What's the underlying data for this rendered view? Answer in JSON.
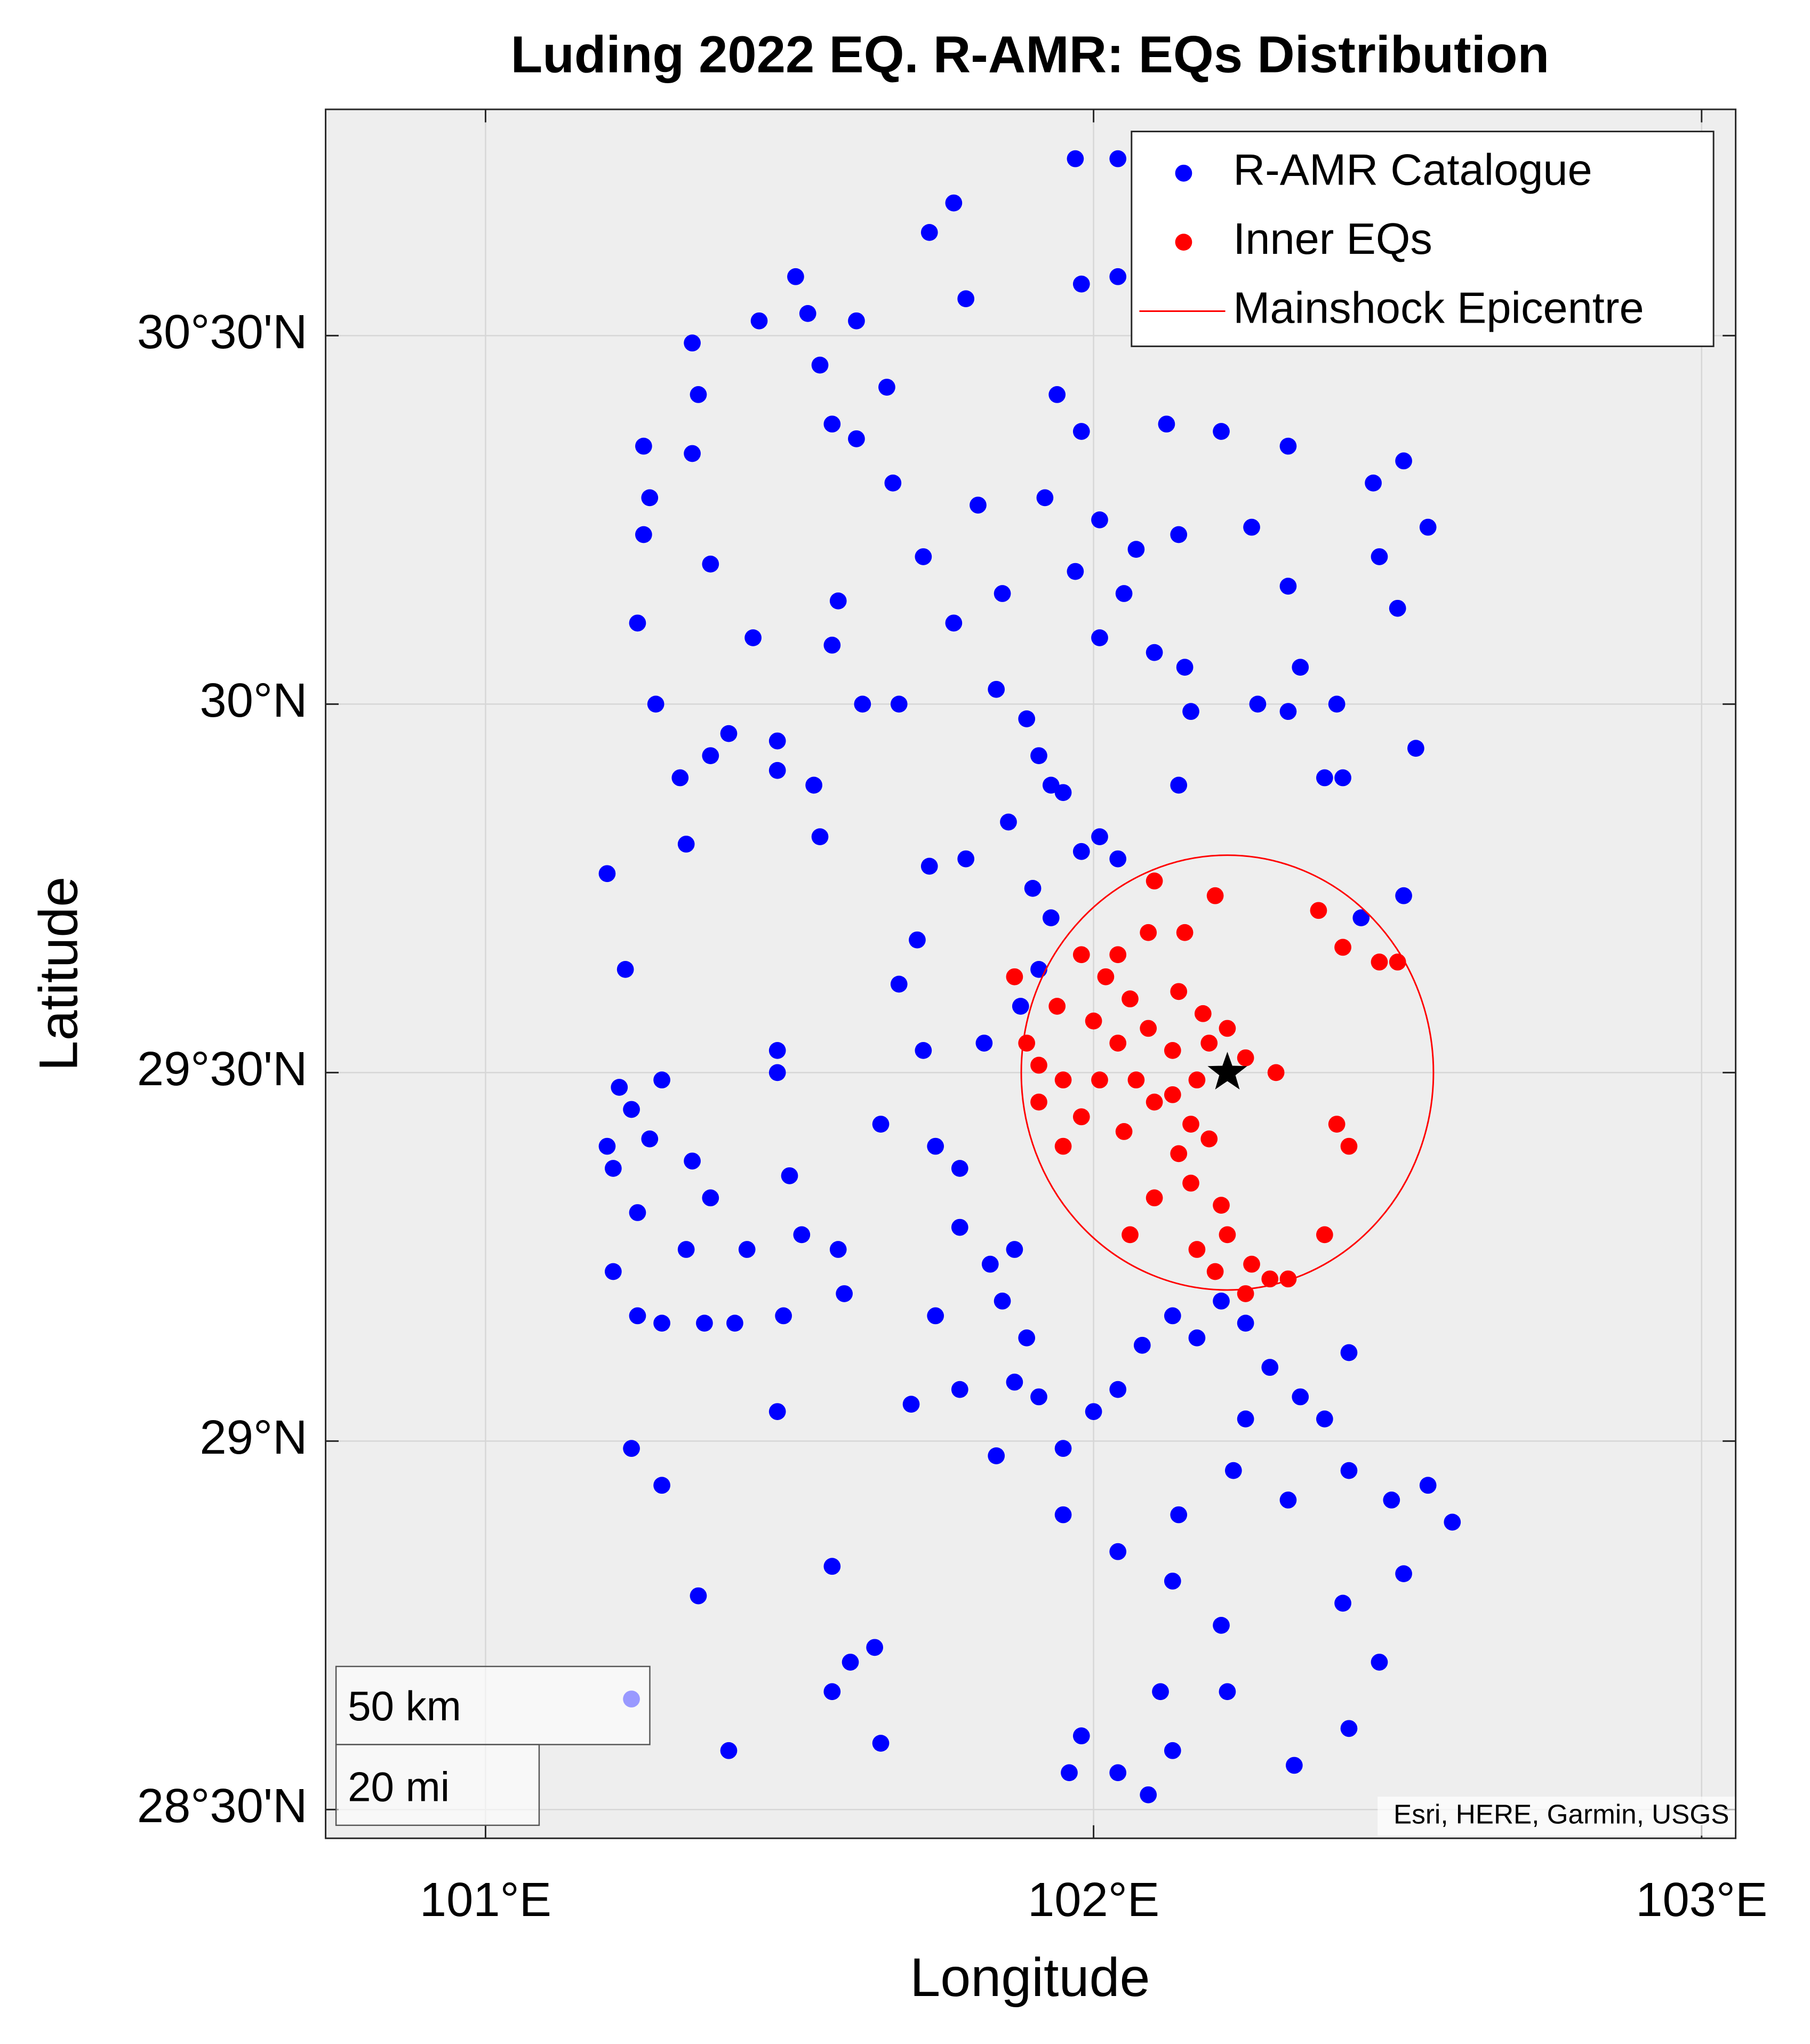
{
  "chart_data": {
    "type": "scatter",
    "title": "Luding 2022 EQ. R-AMR: EQs Distribution",
    "x_label": "Longitude",
    "y_label": "Latitude",
    "xlim": [
      100.737,
      103.056
    ],
    "ylim": [
      28.461,
      30.807
    ],
    "xticks": [
      {
        "value": 101,
        "label": "101°E"
      },
      {
        "value": 102,
        "label": "102°E"
      },
      {
        "value": 103,
        "label": "103°E"
      }
    ],
    "yticks": [
      {
        "value": 28.5,
        "label": "28°30'N"
      },
      {
        "value": 29,
        "label": "29°N"
      },
      {
        "value": 29.5,
        "label": "29°30'N"
      },
      {
        "value": 30,
        "label": "30°N"
      },
      {
        "value": 30.5,
        "label": "30°30'N"
      }
    ],
    "grid": true,
    "legend_loc": "upper right",
    "series": [
      {
        "name": "R-AMR Catalogue",
        "color": "#0000ff",
        "x": [
          101.97,
          102.04,
          101.77,
          101.73,
          101.51,
          101.53,
          101.45,
          101.61,
          101.79,
          101.98,
          102.04,
          101.34,
          101.35,
          101.55,
          101.57,
          101.61,
          101.66,
          101.94,
          101.98,
          102.12,
          102.21,
          102.32,
          102.51,
          102.46,
          101.26,
          101.27,
          101.34,
          101.37,
          101.26,
          101.67,
          101.81,
          101.92,
          102.01,
          102.07,
          102.14,
          101.97,
          102.05,
          102.01,
          102.1,
          102.26,
          102.32,
          102.47,
          102.5,
          102.55,
          101.25,
          101.28,
          101.44,
          101.58,
          101.57,
          101.62,
          101.68,
          101.72,
          101.77,
          101.85,
          101.84,
          101.89,
          101.91,
          101.95,
          102.01,
          102.04,
          101.98,
          101.86,
          101.93,
          102.15,
          102.16,
          102.14,
          102.27,
          102.32,
          102.34,
          102.4,
          102.38,
          102.41,
          102.53,
          101.32,
          101.37,
          101.4,
          101.48,
          101.48,
          101.54,
          101.33,
          101.55,
          101.2,
          101.23,
          101.73,
          101.79,
          101.9,
          101.93,
          101.91,
          101.88,
          101.82,
          101.71,
          101.68,
          101.72,
          101.48,
          101.48,
          102.44,
          102.51,
          101.22,
          101.29,
          101.24,
          101.2,
          101.27,
          101.21,
          101.25,
          101.21,
          101.25,
          101.29,
          101.34,
          101.37,
          101.33,
          101.36,
          101.41,
          101.43,
          101.5,
          101.49,
          101.52,
          101.58,
          101.59,
          101.65,
          101.74,
          101.78,
          101.78,
          101.83,
          101.87,
          101.85,
          101.89,
          101.87,
          101.91,
          101.74,
          101.7,
          101.78,
          101.84,
          101.95,
          102.0,
          102.04,
          102.08,
          102.13,
          102.17,
          102.21,
          102.25,
          102.29,
          102.34,
          102.38,
          102.42,
          102.25,
          102.23,
          102.32,
          102.42,
          102.49,
          102.55,
          102.59,
          102.51,
          102.41,
          102.47,
          102.42,
          102.33,
          102.21,
          102.22,
          102.13,
          102.11,
          102.04,
          101.95,
          101.98,
          101.96,
          102.04,
          102.09,
          102.13,
          101.57,
          101.64,
          101.6,
          101.57,
          101.65,
          101.4,
          101.35,
          101.29,
          101.48,
          101.24,
          102.14,
          101.24
        ],
        "y": [
          30.74,
          30.74,
          30.68,
          30.64,
          30.58,
          30.53,
          30.52,
          30.52,
          30.55,
          30.57,
          30.58,
          30.49,
          30.42,
          30.46,
          30.38,
          30.36,
          30.43,
          30.42,
          30.37,
          30.38,
          30.37,
          30.35,
          30.33,
          30.3,
          30.35,
          30.28,
          30.34,
          30.19,
          30.23,
          30.3,
          30.27,
          30.28,
          30.25,
          30.21,
          30.23,
          30.18,
          30.15,
          30.09,
          30.07,
          30.24,
          30.16,
          30.2,
          30.13,
          30.24,
          30.11,
          30.0,
          30.09,
          30.14,
          30.08,
          30.0,
          30.0,
          30.2,
          30.11,
          30.15,
          30.02,
          29.98,
          29.93,
          29.88,
          29.82,
          29.79,
          29.8,
          29.84,
          29.89,
          30.05,
          29.99,
          29.89,
          30.0,
          29.99,
          30.05,
          30.0,
          29.9,
          29.9,
          29.94,
          29.9,
          29.93,
          29.96,
          29.95,
          29.91,
          29.89,
          29.81,
          29.82,
          29.77,
          29.64,
          29.78,
          29.79,
          29.75,
          29.71,
          29.64,
          29.59,
          29.54,
          29.68,
          29.62,
          29.53,
          29.53,
          29.5,
          29.71,
          29.74,
          29.48,
          29.49,
          29.45,
          29.4,
          29.41,
          29.37,
          29.31,
          29.23,
          29.17,
          29.16,
          29.38,
          29.33,
          29.26,
          29.16,
          29.16,
          29.26,
          29.36,
          29.17,
          29.28,
          29.26,
          29.2,
          29.43,
          29.4,
          29.37,
          29.29,
          29.24,
          29.26,
          29.19,
          29.14,
          29.08,
          29.06,
          29.17,
          29.05,
          29.07,
          28.98,
          28.99,
          29.04,
          29.07,
          29.13,
          29.17,
          29.14,
          29.19,
          29.16,
          29.1,
          29.06,
          29.03,
          29.12,
          29.03,
          28.96,
          28.92,
          28.96,
          28.92,
          28.94,
          28.89,
          28.82,
          28.78,
          28.7,
          28.61,
          28.56,
          28.75,
          28.66,
          28.81,
          28.66,
          28.85,
          28.9,
          28.6,
          28.55,
          28.55,
          28.52,
          28.58,
          28.83,
          28.72,
          28.7,
          28.66,
          28.59,
          28.58,
          28.79,
          28.94,
          29.04,
          28.99,
          28.9,
          28.65
        ]
      },
      {
        "name": "Inner EQs",
        "color": "#ff0000",
        "x": [
          102.1,
          102.2,
          102.37,
          102.41,
          102.47,
          102.5,
          102.09,
          102.15,
          101.98,
          102.02,
          102.06,
          102.14,
          102.18,
          101.94,
          102.0,
          102.04,
          102.09,
          102.13,
          102.19,
          102.22,
          101.91,
          101.95,
          102.01,
          102.07,
          102.13,
          102.17,
          102.25,
          102.3,
          101.91,
          101.98,
          101.95,
          102.05,
          102.1,
          102.16,
          102.14,
          102.19,
          102.4,
          102.42,
          102.1,
          102.16,
          102.21,
          102.17,
          102.22,
          102.26,
          102.2,
          102.29,
          102.32,
          102.25,
          102.06,
          102.38,
          101.89,
          102.04,
          101.87
        ],
        "y": [
          29.76,
          29.74,
          29.72,
          29.67,
          29.65,
          29.65,
          29.69,
          29.69,
          29.66,
          29.63,
          29.6,
          29.61,
          29.58,
          29.59,
          29.57,
          29.54,
          29.56,
          29.53,
          29.54,
          29.56,
          29.51,
          29.49,
          29.49,
          29.49,
          29.47,
          29.49,
          29.52,
          29.5,
          29.46,
          29.44,
          29.4,
          29.42,
          29.46,
          29.43,
          29.39,
          29.41,
          29.43,
          29.4,
          29.33,
          29.35,
          29.32,
          29.26,
          29.28,
          29.24,
          29.23,
          29.22,
          29.22,
          29.2,
          29.28,
          29.28,
          29.54,
          29.66,
          29.63
        ]
      }
    ],
    "mainshock": {
      "name": "Mainshock Epicentre",
      "color": "#ff0000",
      "lon": 102.22,
      "lat": 29.5,
      "radius_deg": 0.295
    },
    "scale_bar": {
      "km_label": "50 km",
      "mi_label": "20 mi"
    },
    "attribution": "Esri, HERE, Garmin, USGS"
  }
}
